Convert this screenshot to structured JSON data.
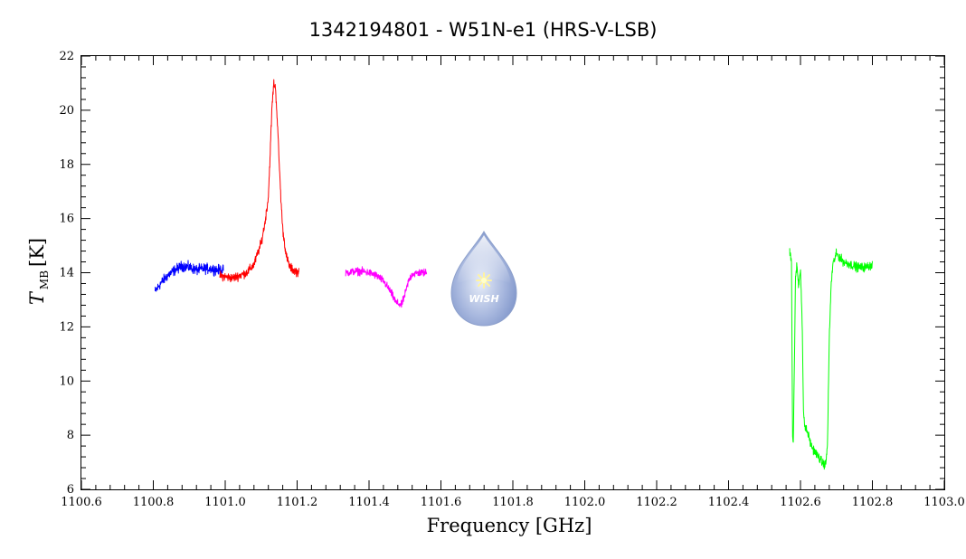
{
  "chart_data": {
    "type": "line",
    "title": "1342194801 - W51N-e1 (HRS-V-LSB)",
    "xlabel": "Frequency [GHz]",
    "ylabel_main": "T",
    "ylabel_sub": "MB",
    "ylabel_unit": "[K]",
    "xlim": [
      1100.6,
      1103.0
    ],
    "ylim": [
      6,
      22
    ],
    "xticks": [
      1100.6,
      1100.8,
      1101.0,
      1101.2,
      1101.4,
      1101.6,
      1101.8,
      1102.0,
      1102.2,
      1102.4,
      1102.6,
      1102.8,
      1103.0
    ],
    "xtick_labels": [
      "1100.6",
      "1100.8",
      "1101.0",
      "1101.2",
      "1101.4",
      "1101.6",
      "1101.8",
      "1102.0",
      "1102.2",
      "1102.4",
      "1102.6",
      "1102.8",
      "1103.0"
    ],
    "yticks": [
      6,
      8,
      10,
      12,
      14,
      16,
      18,
      20,
      22
    ],
    "ytick_labels": [
      "6",
      "8",
      "10",
      "12",
      "14",
      "16",
      "18",
      "20",
      "22"
    ],
    "grid": false,
    "logo_text": "WISH",
    "series": [
      {
        "color": "#0000ff",
        "noise": 0.16,
        "x": [
          1100.805,
          1100.82,
          1100.84,
          1100.86,
          1100.88,
          1100.9,
          1100.92,
          1100.94,
          1100.96,
          1100.98,
          1100.995
        ],
        "y": [
          13.3,
          13.6,
          13.9,
          14.1,
          14.25,
          14.2,
          14.1,
          14.15,
          14.15,
          14.1,
          14.1
        ]
      },
      {
        "color": "#ff0000",
        "noise": 0.14,
        "x": [
          1100.985,
          1101.0,
          1101.02,
          1101.04,
          1101.06,
          1101.08,
          1101.1,
          1101.11,
          1101.12,
          1101.125,
          1101.13,
          1101.135,
          1101.14,
          1101.145,
          1101.15,
          1101.155,
          1101.16,
          1101.17,
          1101.18,
          1101.19,
          1101.205
        ],
        "y": [
          13.9,
          13.85,
          13.8,
          13.9,
          14.0,
          14.3,
          15.1,
          15.8,
          16.8,
          18.4,
          20.1,
          21.0,
          20.8,
          19.6,
          18.1,
          16.7,
          15.6,
          14.6,
          14.2,
          14.1,
          14.0
        ]
      },
      {
        "color": "#ff00ff",
        "noise": 0.12,
        "x": [
          1101.335,
          1101.36,
          1101.38,
          1101.4,
          1101.42,
          1101.44,
          1101.46,
          1101.475,
          1101.49,
          1101.5,
          1101.51,
          1101.52,
          1101.54,
          1101.56
        ],
        "y": [
          14.0,
          14.05,
          14.05,
          14.0,
          13.9,
          13.7,
          13.3,
          12.9,
          12.8,
          13.2,
          13.7,
          13.95,
          14.0,
          14.0
        ]
      },
      {
        "color": "#00ff00",
        "noise": 0.14,
        "x": [
          1102.57,
          1102.575,
          1102.578,
          1102.58,
          1102.583,
          1102.586,
          1102.59,
          1102.595,
          1102.6,
          1102.605,
          1102.608,
          1102.612,
          1102.62,
          1102.63,
          1102.64,
          1102.65,
          1102.66,
          1102.67,
          1102.675,
          1102.68,
          1102.685,
          1102.69,
          1102.7,
          1102.72,
          1102.74,
          1102.76,
          1102.78,
          1102.8
        ],
        "y": [
          14.8,
          14.5,
          8.0,
          7.7,
          10.5,
          13.7,
          14.3,
          13.5,
          14.2,
          12.0,
          9.0,
          8.3,
          8.1,
          7.6,
          7.4,
          7.2,
          7.0,
          6.9,
          7.6,
          11.5,
          13.5,
          14.3,
          14.7,
          14.4,
          14.3,
          14.2,
          14.2,
          14.3
        ]
      }
    ]
  }
}
